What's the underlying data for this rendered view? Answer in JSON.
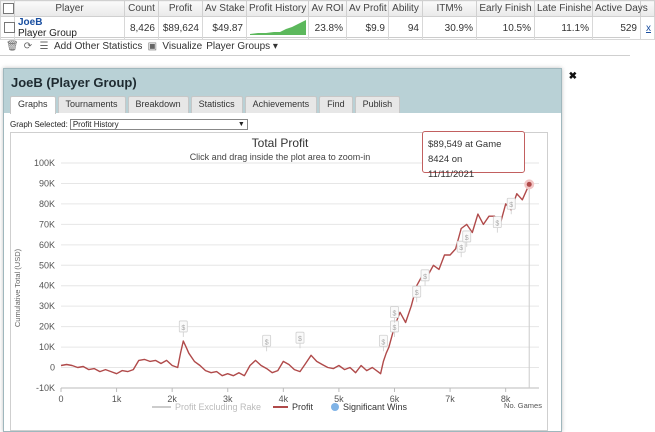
{
  "stats_table": {
    "headers": [
      "Player",
      "Count",
      "Profit",
      "Av Stake",
      "Profit History",
      "Av ROI",
      "Av Profit",
      "Ability",
      "ITM%",
      "Early Finish",
      "Late Finishe",
      "Active Days"
    ],
    "row": {
      "player_name": "JoeB",
      "player_group": "Player Group",
      "count": "8,426",
      "profit": "$89,624",
      "av_stake": "$49.87",
      "av_roi": "23.8%",
      "av_profit": "$9.9",
      "ability": "94",
      "itm": "30.9%",
      "early_finish": "10.5%",
      "late_finish": "11.1%",
      "active_days": "529",
      "remove_link": "x"
    }
  },
  "toolbar": {
    "add_stats": "Add Other Statistics",
    "visualize": "Visualize",
    "player_groups": "Player Groups"
  },
  "window": {
    "title": "JoeB (Player Group)",
    "tabs": [
      "Graphs",
      "Tournaments",
      "Breakdown",
      "Statistics",
      "Achievements",
      "Find",
      "Publish"
    ],
    "active_tab": "Graphs",
    "graph_selected_label": "Graph Selected:",
    "graph_selected_value": "Profit History"
  },
  "tooltip": {
    "line1": "$89,549 at Game 8424 on",
    "line2": "11/11/2021"
  },
  "chart_data": {
    "type": "line",
    "title": "Total Profit",
    "subtitle": "Click and drag inside the plot area to zoom-in",
    "ylabel": "Cumulative Total (USD)",
    "xlabel": "No. Games",
    "ylim": [
      -10000,
      100000
    ],
    "xlim": [
      0,
      8600
    ],
    "y_ticks": [
      "100K",
      "90K",
      "80K",
      "70K",
      "60K",
      "50K",
      "40K",
      "30K",
      "20K",
      "10K",
      "0",
      "-10K"
    ],
    "x_ticks": [
      "0",
      "1k",
      "2k",
      "3k",
      "4k",
      "5k",
      "6k",
      "7k",
      "8k"
    ],
    "legend": [
      "Profit Excluding Rake",
      "Profit",
      "Significant Wins"
    ],
    "colors": {
      "profit": "#b04a4a",
      "excl_rake": "#cccccc",
      "sig_wins": "#7fb3e6"
    },
    "x": [
      0,
      100,
      200,
      300,
      400,
      500,
      600,
      700,
      800,
      900,
      1000,
      1100,
      1200,
      1300,
      1400,
      1500,
      1600,
      1700,
      1800,
      1900,
      2000,
      2100,
      2150,
      2200,
      2250,
      2300,
      2400,
      2500,
      2600,
      2700,
      2800,
      2900,
      3000,
      3100,
      3200,
      3300,
      3400,
      3500,
      3600,
      3700,
      3800,
      3900,
      4000,
      4100,
      4200,
      4300,
      4400,
      4500,
      4600,
      4700,
      4800,
      4900,
      5000,
      5100,
      5200,
      5300,
      5400,
      5500,
      5600,
      5700,
      5750,
      5800,
      5850,
      5900,
      6000,
      6100,
      6200,
      6300,
      6400,
      6500,
      6600,
      6700,
      6800,
      6900,
      7000,
      7100,
      7200,
      7300,
      7400,
      7500,
      7600,
      7700,
      7800,
      7900,
      8000,
      8100,
      8200,
      8300,
      8424
    ],
    "y": [
      1000,
      1500,
      1000,
      0,
      500,
      -1000,
      -500,
      -2000,
      -1000,
      -2000,
      -3000,
      -1500,
      -2000,
      -1000,
      3500,
      4000,
      3000,
      3500,
      2000,
      3500,
      1000,
      0,
      7000,
      13000,
      10000,
      7000,
      3000,
      1000,
      -1500,
      -2500,
      -2000,
      -4000,
      -3000,
      -4000,
      -2500,
      -4000,
      1000,
      3500,
      1000,
      -500,
      -2500,
      -1500,
      3000,
      1500,
      -1000,
      -2000,
      2000,
      6000,
      3000,
      1500,
      0,
      -500,
      1000,
      -1000,
      0,
      -2500,
      1000,
      -1500,
      0,
      -2000,
      -3000,
      3000,
      7000,
      10000,
      20000,
      27000,
      22000,
      30000,
      40000,
      45000,
      45000,
      50000,
      48000,
      55000,
      55000,
      58000,
      68000,
      70000,
      66000,
      75000,
      70000,
      74000,
      74000,
      70000,
      80000,
      77000,
      85000,
      82000,
      89549
    ],
    "significant_wins_x": [
      2200,
      3700,
      4300,
      5800,
      6000,
      6000,
      6400,
      6550,
      7200,
      7300,
      7850,
      8100
    ],
    "significant_wins_y": [
      13000,
      6000,
      7500,
      6000,
      13000,
      20000,
      30000,
      38000,
      52000,
      57000,
      64000,
      73000
    ]
  }
}
